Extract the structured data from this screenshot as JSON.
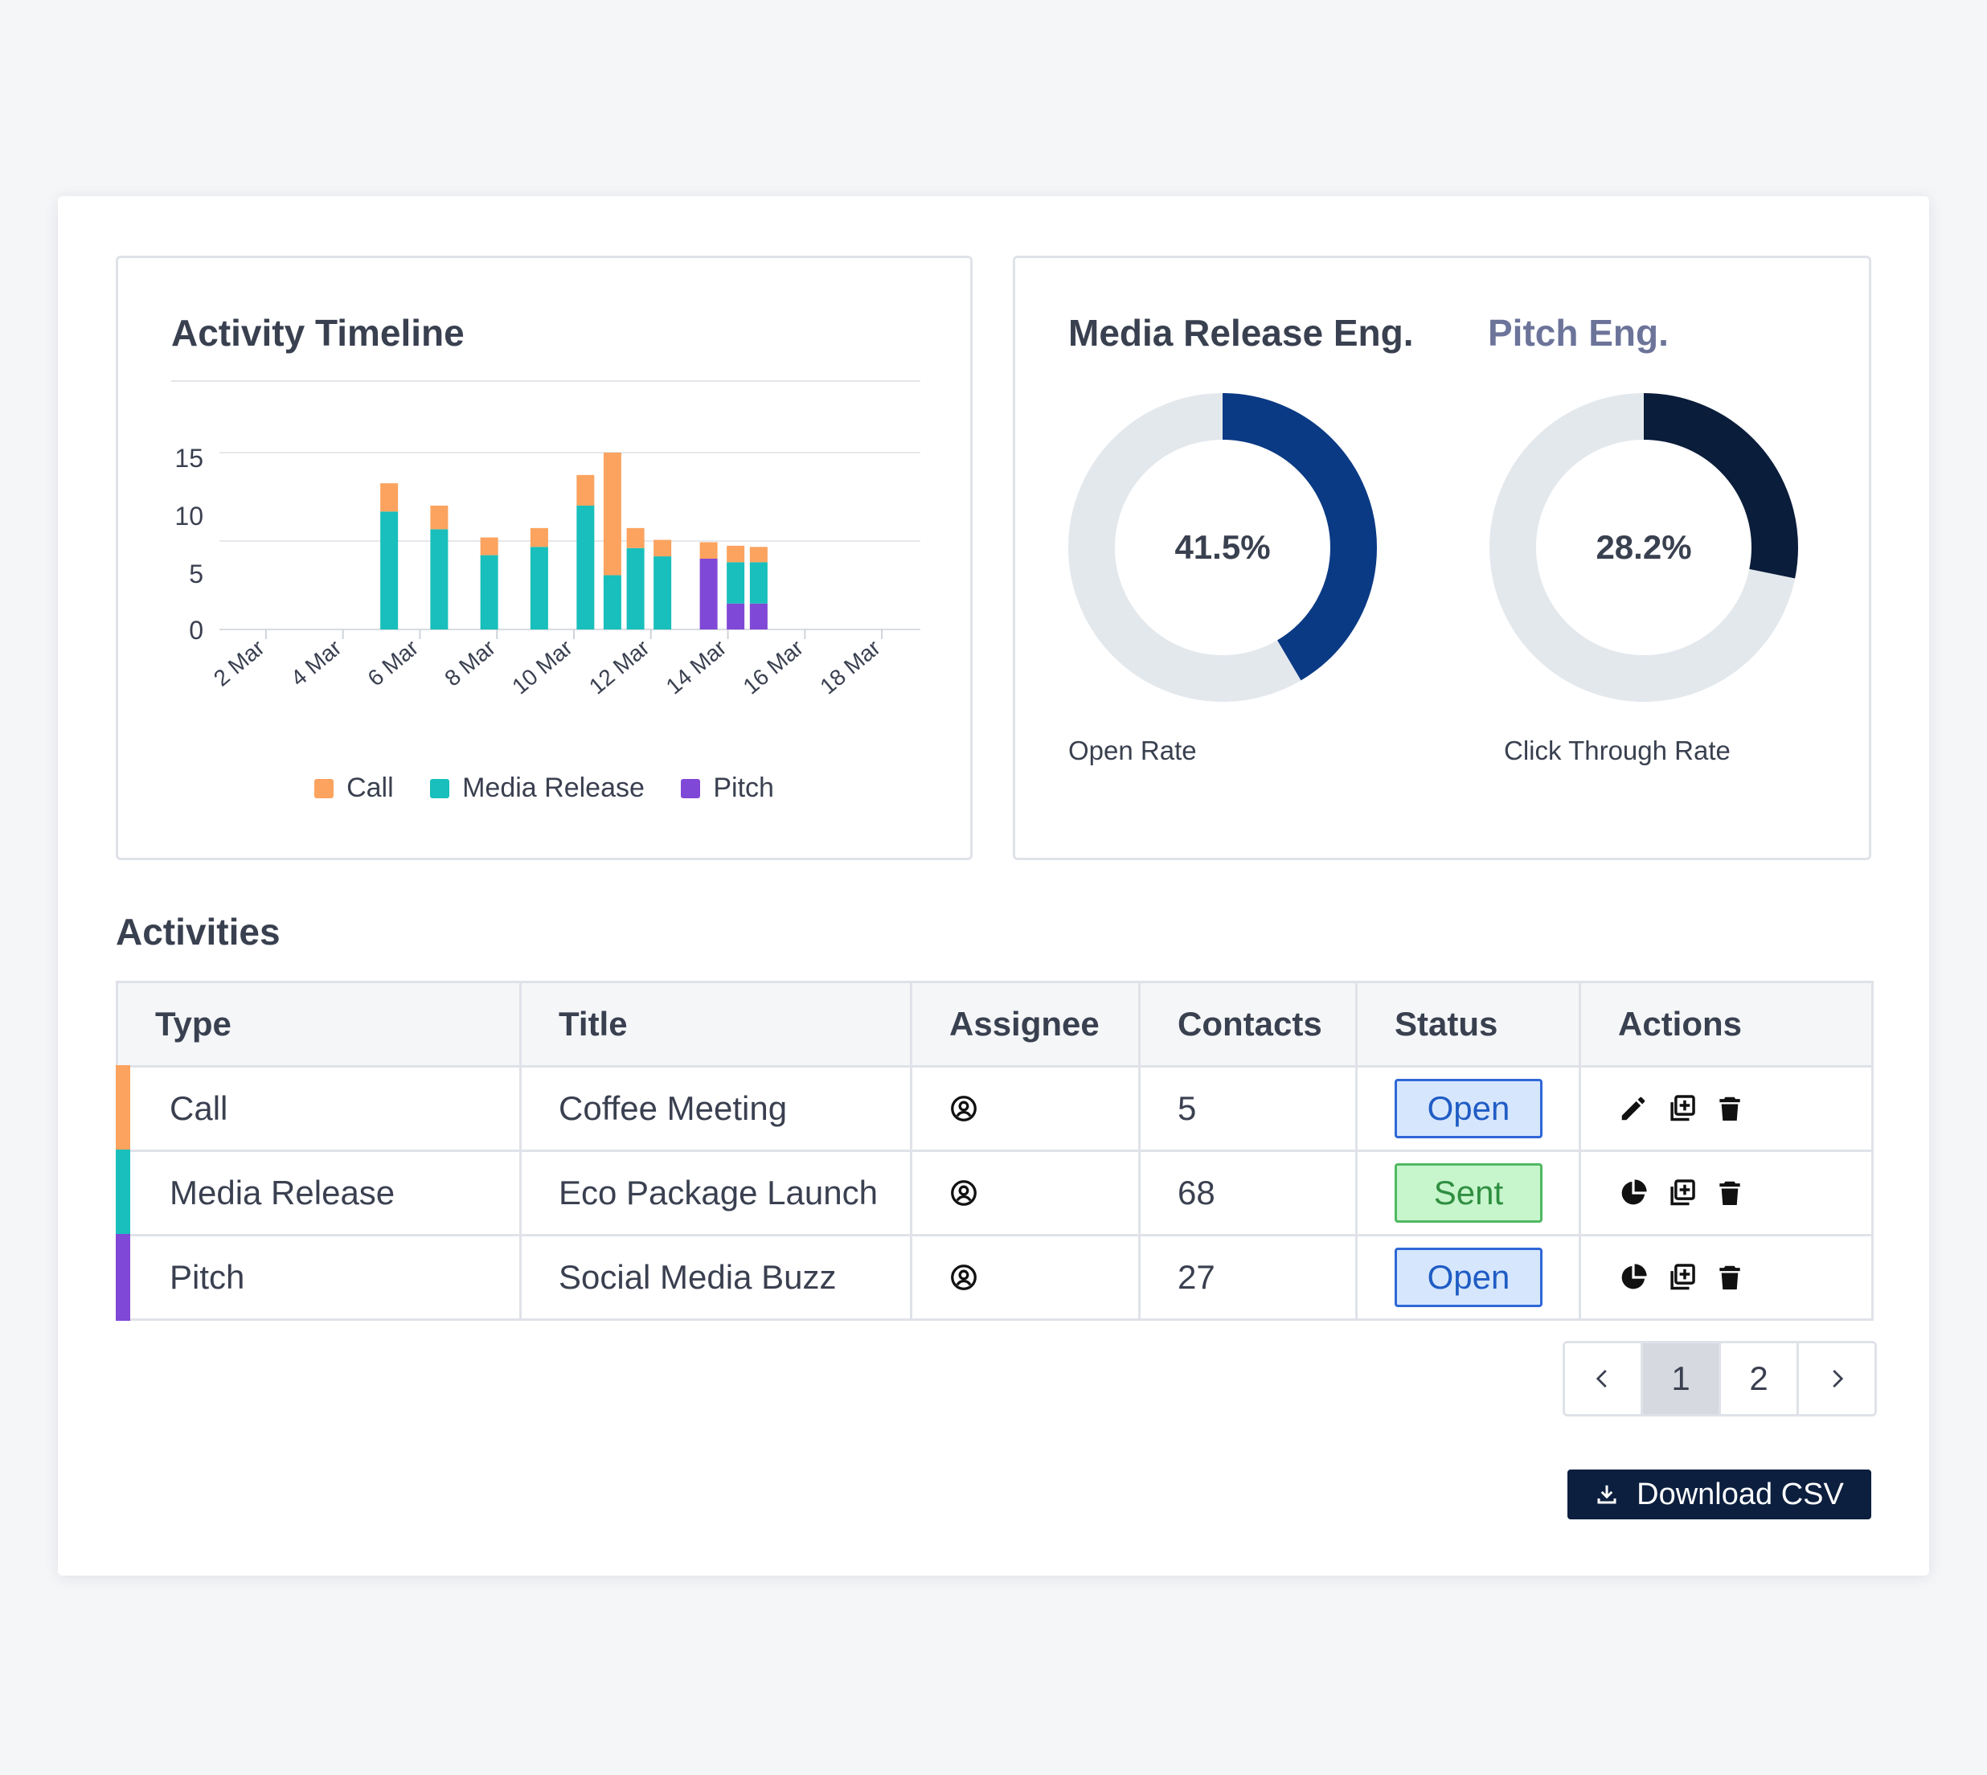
{
  "timeline": {
    "title": "Activity Timeline",
    "legend": [
      {
        "label": "Call",
        "color": "#fba35f"
      },
      {
        "label": "Media Release",
        "color": "#18bfbc"
      },
      {
        "label": "Pitch",
        "color": "#8048d6"
      }
    ]
  },
  "chart_data": {
    "type": "bar",
    "stacked": true,
    "title": "Activity Timeline",
    "x_ticks": [
      "2 Mar",
      "4 Mar",
      "6 Mar",
      "8 Mar",
      "10 Mar",
      "12 Mar",
      "14 Mar",
      "16 Mar",
      "18 Mar"
    ],
    "y_ticks": [
      "0",
      "5",
      "10",
      "15"
    ],
    "ylim": [
      0,
      15
    ],
    "grid": true,
    "legend_position": "bottom",
    "categories": [
      "5 Mar",
      "6 Mar",
      "7 Mar",
      "8 Mar",
      "9 Mar",
      "10 Mar",
      "11 Mar",
      "12 Mar",
      "13 Mar",
      "14 Mar",
      "14.5 Mar",
      "15 Mar"
    ],
    "x_day": [
      5.2,
      6.5,
      7.8,
      9.1,
      10.3,
      11.0,
      11.6,
      12.3,
      13.5,
      14.2,
      14.8,
      15.0
    ],
    "series": [
      {
        "name": "Pitch",
        "color": "#8048d6",
        "values": [
          0,
          0,
          0,
          0,
          0,
          0,
          0,
          0,
          6,
          2.2,
          2.2,
          0
        ]
      },
      {
        "name": "Media Release",
        "color": "#18bfbc",
        "values": [
          10,
          8.5,
          6.3,
          7,
          10.5,
          4.6,
          6.9,
          6.2,
          0,
          3.5,
          3.5,
          0
        ]
      },
      {
        "name": "Call",
        "color": "#fba35f",
        "values": [
          2.4,
          2,
          1.5,
          1.6,
          2.6,
          10.4,
          1.7,
          1.4,
          1.4,
          1.4,
          1.3,
          0
        ]
      }
    ]
  },
  "engagement": {
    "media": {
      "title": "Media Release Eng.",
      "value": "41.5%",
      "fraction": 0.415,
      "label": "Open Rate",
      "color": "#0b3a85"
    },
    "pitch": {
      "title": "Pitch Eng.",
      "value": "28.2%",
      "fraction": 0.282,
      "label": "Click Through Rate",
      "color": "#0a1d3a"
    },
    "track_color": "#e3e8ed"
  },
  "activities": {
    "title": "Activities",
    "columns": [
      "Type",
      "Title",
      "Assignee",
      "Contacts",
      "Status",
      "Actions"
    ],
    "rows": [
      {
        "type": "Call",
        "type_color": "#fba35f",
        "title": "Coffee Meeting",
        "assignee_icon": "user-circle-icon",
        "contacts": "5",
        "status": "Open",
        "first_action": "edit-icon"
      },
      {
        "type": "Media Release",
        "type_color": "#18bfbc",
        "title": "Eco Package Launch",
        "assignee_icon": "user-circle-icon",
        "contacts": "68",
        "status": "Sent",
        "first_action": "pie-chart-icon"
      },
      {
        "type": "Pitch",
        "type_color": "#8048d6",
        "title": "Social Media Buzz",
        "assignee_icon": "user-circle-icon",
        "contacts": "27",
        "status": "Open",
        "first_action": "pie-chart-icon"
      }
    ]
  },
  "pagination": {
    "prev": "<",
    "pages": [
      "1",
      "2"
    ],
    "next": ">",
    "current": "1"
  },
  "download": {
    "label": "Download CSV",
    "icon": "download-icon"
  }
}
